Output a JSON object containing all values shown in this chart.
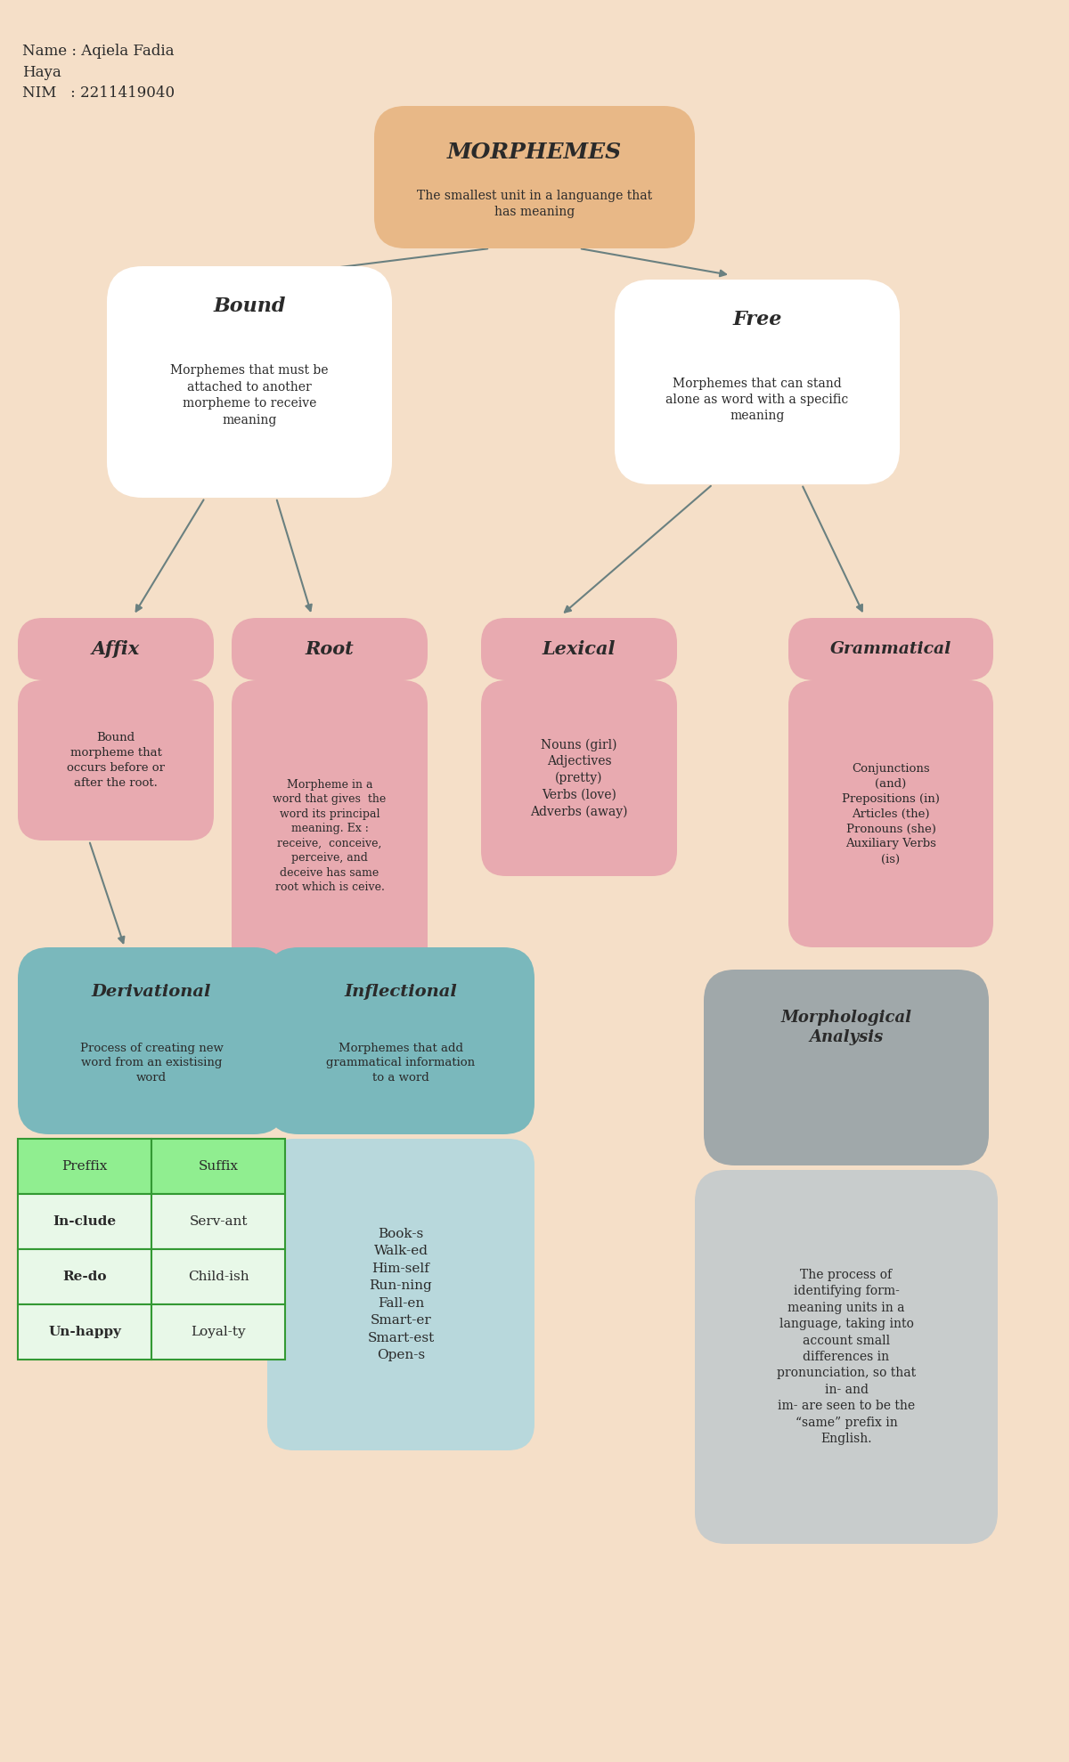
{
  "bg_color": "#f5dfc8",
  "title_text": "MORPHEMES",
  "title_sub": "The smallest unit in a languange that\nhas meaning",
  "title_box_color": "#e8b887",
  "name_text": "Name : Aqiela Fadia\nHaya\nNIM   : 2211419040",
  "bound_title": "Bound",
  "bound_body": "Morphemes that must be\nattached to another\nmorpheme to receive\nmeaning",
  "free_title": "Free",
  "free_body": "Morphemes that can stand\nalone as word with a specific\nmeaning",
  "level2_box_color": "#ffffff",
  "affix_title": "Affix",
  "affix_body": "Bound\nmorpheme that\noccurs before or\nafter the root.",
  "root_title": "Root",
  "root_body": "Morpheme in a\nword that gives  the\nword its principal\nmeaning. Ex :\nreceive,  conceive,\nperceive, and\ndeceive has same\nroot which is ceive.",
  "lexical_title": "Lexical",
  "lexical_body": "Nouns (girl)\nAdjectives\n(pretty)\nVerbs (love)\nAdverbs (away)",
  "grammatical_title": "Grammatical",
  "grammatical_body": "Conjunctions\n(and)\nPrepositions (in)\nArticles (the)\nPronouns (she)\nAuxiliary Verbs\n(is)",
  "level3_box_color": "#e8aab0",
  "deriv_title": "Derivational",
  "deriv_body": "Process of creating new\nword from an existising\nword",
  "inflect_title": "Inflectional",
  "inflect_body": "Morphemes that add\ngrammatical information\nto a word",
  "morphanal_title": "Morphological\nAnalysis",
  "morphanal_body": "The process of\nidentifying form-\nmeaning units in a\nlanguage, taking into\naccount small\ndifferences in\npronunciation, so that\nin- and\nim- are seen to be the\n“same” prefix in\nEnglish.",
  "level4_box_color": "#7ab8bc",
  "inflect_box_color": "#b8d8dc",
  "morphanal_box_color": "#a0a8aa",
  "table_header_color": "#90ee90",
  "table_cell_color": "#e8f8e8",
  "table_prefix": [
    "In-clude",
    "Re-do",
    "Un-happy"
  ],
  "table_suffix": [
    "Serv-ant",
    "Child-ish",
    "Loyal-ty"
  ],
  "inflect_examples": "Book-s\nWalk-ed\nHim-self\nRun-ning\nFall-en\nSmart-er\nSmart-est\nOpen-s",
  "arrow_color": "#6a8080"
}
